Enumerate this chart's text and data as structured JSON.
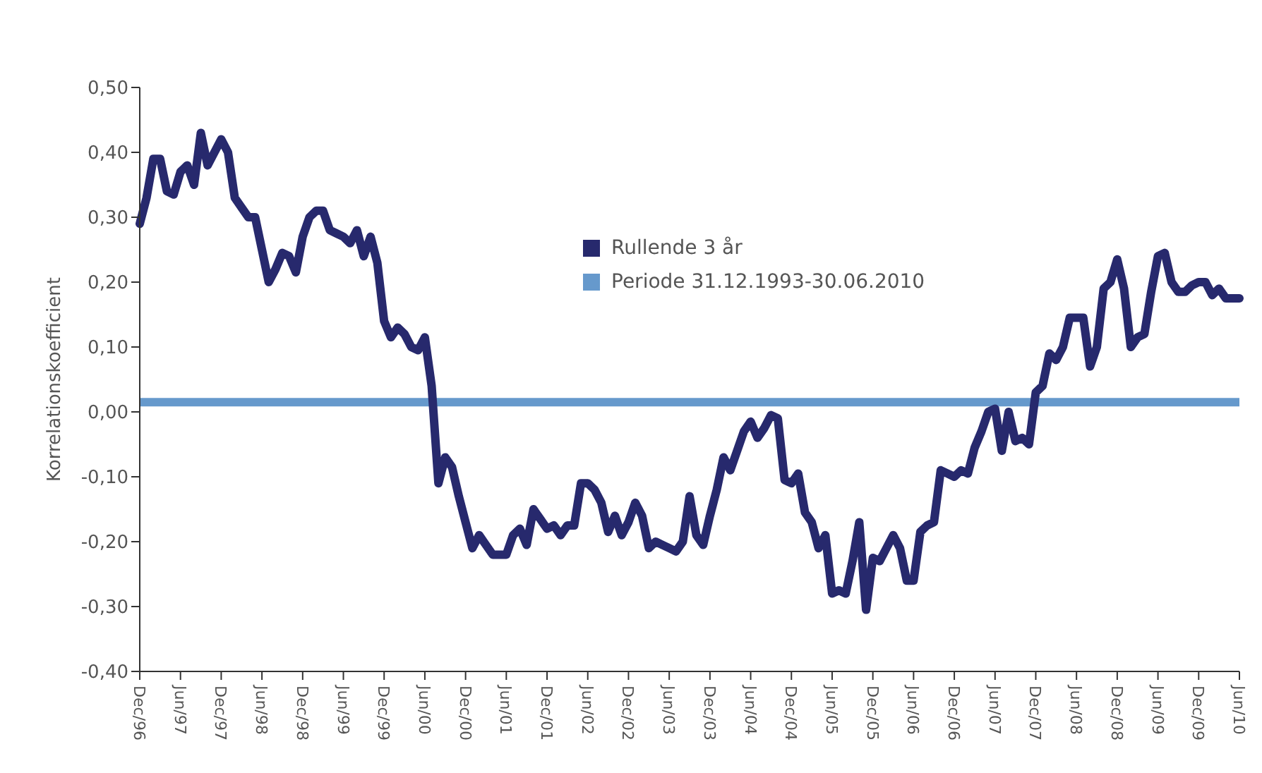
{
  "chart_data": {
    "type": "line",
    "ylabel": "Korrelationskoefficient",
    "categories": [
      "Dec/96",
      null,
      null,
      null,
      null,
      null,
      "Jun/97",
      null,
      null,
      null,
      null,
      null,
      "Dec/97",
      null,
      null,
      null,
      null,
      null,
      "Jun/98",
      null,
      null,
      null,
      null,
      null,
      "Dec/98",
      null,
      null,
      null,
      null,
      null,
      "Jun/99",
      null,
      null,
      null,
      null,
      null,
      "Dec/99",
      null,
      null,
      null,
      null,
      null,
      "Jun/00",
      null,
      null,
      null,
      null,
      null,
      "Dec/00",
      null,
      null,
      null,
      null,
      null,
      "Jun/01",
      null,
      null,
      null,
      null,
      null,
      "Dec/01",
      null,
      null,
      null,
      null,
      null,
      "Jun/02",
      null,
      null,
      null,
      null,
      null,
      "Dec/02",
      null,
      null,
      null,
      null,
      null,
      "Jun/03",
      null,
      null,
      null,
      null,
      null,
      "Dec/03",
      null,
      null,
      null,
      null,
      null,
      "Jun/04",
      null,
      null,
      null,
      null,
      null,
      "Dec/04",
      null,
      null,
      null,
      null,
      null,
      "Jun/05",
      null,
      null,
      null,
      null,
      null,
      "Dec/05",
      null,
      null,
      null,
      null,
      null,
      "Jun/06",
      null,
      null,
      null,
      null,
      null,
      "Dec/06",
      null,
      null,
      null,
      null,
      null,
      "Jun/07",
      null,
      null,
      null,
      null,
      null,
      "Dec/07",
      null,
      null,
      null,
      null,
      null,
      "Jun/08",
      null,
      null,
      null,
      null,
      null,
      "Dec/08",
      null,
      null,
      null,
      null,
      null,
      "Jun/09",
      null,
      null,
      null,
      null,
      null,
      "Dec/09",
      null,
      null,
      null,
      null,
      null,
      "Jun/10"
    ],
    "series": [
      {
        "name": "Rullende 3 år",
        "color": "#27296d",
        "values": [
          0.29,
          0.33,
          0.39,
          0.39,
          0.34,
          0.335,
          0.37,
          0.38,
          0.35,
          0.43,
          0.38,
          0.4,
          0.42,
          0.4,
          0.33,
          0.315,
          0.3,
          0.3,
          0.25,
          0.2,
          0.22,
          0.245,
          0.24,
          0.215,
          0.27,
          0.3,
          0.31,
          0.31,
          0.28,
          0.275,
          0.27,
          0.26,
          0.28,
          0.24,
          0.27,
          0.23,
          0.14,
          0.115,
          0.13,
          0.12,
          0.1,
          0.095,
          0.115,
          0.04,
          -0.11,
          -0.07,
          -0.085,
          -0.13,
          -0.17,
          -0.21,
          -0.19,
          -0.205,
          -0.22,
          -0.22,
          -0.22,
          -0.19,
          -0.18,
          -0.205,
          -0.15,
          -0.165,
          -0.18,
          -0.175,
          -0.19,
          -0.175,
          -0.175,
          -0.11,
          -0.11,
          -0.12,
          -0.14,
          -0.185,
          -0.16,
          -0.19,
          -0.17,
          -0.14,
          -0.16,
          -0.21,
          -0.2,
          -0.205,
          -0.21,
          -0.215,
          -0.2,
          -0.13,
          -0.19,
          -0.205,
          -0.16,
          -0.12,
          -0.07,
          -0.09,
          -0.06,
          -0.03,
          -0.015,
          -0.04,
          -0.025,
          -0.005,
          -0.01,
          -0.105,
          -0.11,
          -0.095,
          -0.155,
          -0.17,
          -0.21,
          -0.19,
          -0.28,
          -0.275,
          -0.28,
          -0.23,
          -0.17,
          -0.305,
          -0.225,
          -0.23,
          -0.21,
          -0.19,
          -0.21,
          -0.26,
          -0.26,
          -0.185,
          -0.175,
          -0.17,
          -0.09,
          -0.095,
          -0.1,
          -0.09,
          -0.095,
          -0.055,
          -0.03,
          0.0,
          0.005,
          -0.06,
          0.0,
          -0.045,
          -0.04,
          -0.05,
          0.03,
          0.04,
          0.09,
          0.08,
          0.1,
          0.145,
          0.145,
          0.145,
          0.07,
          0.1,
          0.19,
          0.2,
          0.235,
          0.19,
          0.1,
          0.115,
          0.12,
          0.185,
          0.24,
          0.245,
          0.2,
          0.185,
          0.185,
          0.195,
          0.2,
          0.2,
          0.18,
          0.19,
          0.175,
          0.175,
          0.175
        ]
      }
    ],
    "ref_lines": [
      {
        "axis": "y",
        "value": 0.015,
        "label": "Periode 31.12.1993-30.06.2010",
        "color": "#6699cc"
      }
    ],
    "ylim": [
      -0.4,
      0.5
    ],
    "yticks": [
      {
        "value": -0.4,
        "label": "-0,40"
      },
      {
        "value": -0.3,
        "label": "-0,30"
      },
      {
        "value": -0.2,
        "label": "-0,20"
      },
      {
        "value": -0.1,
        "label": "-0,10"
      },
      {
        "value": 0,
        "label": "0,00"
      },
      {
        "value": 0.1,
        "label": "0,10"
      },
      {
        "value": 0.2,
        "label": "0,20"
      },
      {
        "value": 0.3,
        "label": "0,30"
      },
      {
        "value": 0.4,
        "label": "0,40"
      },
      {
        "value": 0.5,
        "label": "0,50"
      }
    ],
    "grid": false,
    "legend": "top",
    "marker": "none",
    "line_style": "solid"
  }
}
